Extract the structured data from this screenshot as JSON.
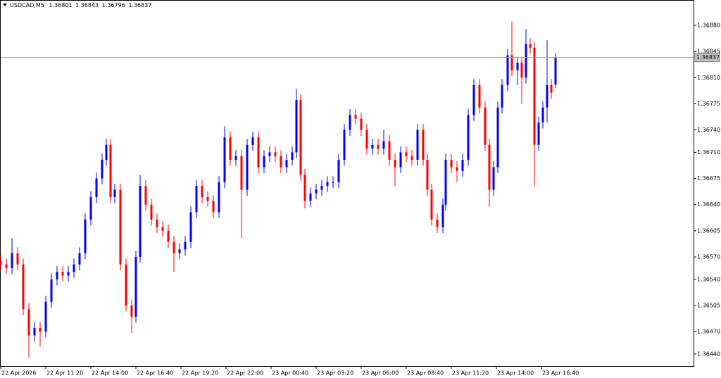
{
  "chart_data": {
    "type": "candlestick",
    "title": "USDCAD,M5",
    "up_color": "#0000ff",
    "down_color": "#ff0000",
    "grid": false,
    "xlim": [
      0,
      492
    ],
    "ylim": [
      1.36424,
      1.36912
    ],
    "xticks": [
      {
        "value": 0,
        "label": "22 Apr 2026"
      },
      {
        "value": 32,
        "label": "22 Apr 11:20"
      },
      {
        "value": 64,
        "label": "22 Apr 14:00"
      },
      {
        "value": 96,
        "label": "22 Apr 16:40"
      },
      {
        "value": 128,
        "label": "22 Apr 19:20"
      },
      {
        "value": 160,
        "label": "22 Apr 22:00"
      },
      {
        "value": 192,
        "label": "23 Apr 00:40"
      },
      {
        "value": 224,
        "label": "23 Apr 03:20"
      },
      {
        "value": 256,
        "label": "23 Apr 06:00"
      },
      {
        "value": 288,
        "label": "23 Apr 08:40"
      },
      {
        "value": 320,
        "label": "23 Apr 11:20"
      },
      {
        "value": 352,
        "label": "23 Apr 14:00"
      },
      {
        "value": 384,
        "label": "23 Apr 16:40"
      }
    ],
    "yticks": [
      {
        "value": 1.3688,
        "label": "1.36880"
      },
      1.36845,
      {
        "value": 1.3681,
        "label": "1.36810"
      },
      1.36775,
      {
        "value": 1.3674,
        "label": "1.36740"
      },
      {
        "value": 1.3671,
        "label": "1.36710"
      },
      1.36675,
      {
        "value": 1.3664,
        "label": "1.36640"
      },
      1.36605,
      {
        "value": 1.3657,
        "label": "1.36570"
      },
      {
        "value": 1.3654,
        "label": "1.36540"
      },
      1.36505,
      {
        "value": 1.3647,
        "label": "1.36470"
      },
      {
        "value": 1.3644,
        "label": "1.36440"
      }
    ],
    "x": [
      0,
      4,
      8,
      12,
      16,
      20,
      24,
      28,
      32,
      36,
      40,
      44,
      48,
      52,
      56,
      60,
      64,
      68,
      72,
      75,
      78,
      81,
      85,
      89,
      93,
      96,
      99,
      103,
      107,
      111,
      115,
      119,
      123,
      127,
      131,
      135,
      139,
      143,
      147,
      151,
      155,
      159,
      163,
      167,
      171,
      175,
      179,
      183,
      187,
      191,
      195,
      199,
      203,
      207,
      210,
      213,
      216,
      220,
      224,
      228,
      232,
      236,
      240,
      244,
      248,
      252,
      256,
      260,
      264,
      268,
      272,
      276,
      280,
      284,
      288,
      292,
      296,
      300,
      303,
      306,
      310,
      314,
      316,
      320,
      324,
      328,
      332,
      336,
      340,
      344,
      347,
      350,
      353,
      356,
      360,
      363,
      367,
      370,
      373,
      376,
      379,
      382,
      385,
      388,
      391,
      394
    ],
    "open": [
      1.36565,
      1.3656,
      1.36555,
      1.36575,
      1.3656,
      1.365,
      1.36465,
      1.36475,
      1.3647,
      1.3651,
      1.3654,
      1.3655,
      1.36545,
      1.3655,
      1.3656,
      1.36575,
      1.3662,
      1.3665,
      1.36675,
      1.367,
      1.3672,
      1.3665,
      1.3666,
      1.3656,
      1.36505,
      1.3649,
      1.3657,
      1.36665,
      1.3664,
      1.3662,
      1.3661,
      1.36605,
      1.3659,
      1.36575,
      1.3658,
      1.3659,
      1.3663,
      1.36665,
      1.3665,
      1.36645,
      1.3663,
      1.3667,
      1.3673,
      1.367,
      1.36705,
      1.3666,
      1.3672,
      1.3673,
      1.3669,
      1.36705,
      1.3671,
      1.36705,
      1.3669,
      1.367,
      1.3671,
      1.3678,
      1.3668,
      1.36645,
      1.36655,
      1.3666,
      1.36665,
      1.3667,
      1.3667,
      1.367,
      1.3674,
      1.3676,
      1.36755,
      1.3674,
      1.36715,
      1.3672,
      1.36715,
      1.36725,
      1.367,
      1.3669,
      1.3671,
      1.36705,
      1.367,
      1.3674,
      1.367,
      1.3666,
      1.3662,
      1.3661,
      1.3664,
      1.367,
      1.3669,
      1.36685,
      1.367,
      1.3676,
      1.368,
      1.3677,
      1.3672,
      1.3666,
      1.3669,
      1.3677,
      1.368,
      1.3684,
      1.3682,
      1.3683,
      1.3681,
      1.36855,
      1.3685,
      1.3672,
      1.3675,
      1.3677,
      1.368,
      1.36801
    ],
    "high": [
      1.36573,
      1.36568,
      1.36595,
      1.36583,
      1.36568,
      1.36508,
      1.36483,
      1.36483,
      1.36518,
      1.36548,
      1.36558,
      1.36558,
      1.36558,
      1.36568,
      1.36583,
      1.36628,
      1.36658,
      1.36683,
      1.36708,
      1.36728,
      1.36728,
      1.36668,
      1.36668,
      1.36568,
      1.36513,
      1.36578,
      1.3668,
      1.36673,
      1.36648,
      1.36628,
      1.36618,
      1.36613,
      1.36598,
      1.36588,
      1.36598,
      1.36638,
      1.36673,
      1.36673,
      1.36658,
      1.36653,
      1.36678,
      1.36745,
      1.36738,
      1.36713,
      1.36713,
      1.36728,
      1.36738,
      1.36738,
      1.36713,
      1.36718,
      1.36718,
      1.36713,
      1.36708,
      1.36718,
      1.36795,
      1.36788,
      1.36688,
      1.36663,
      1.36668,
      1.36673,
      1.36678,
      1.36678,
      1.36708,
      1.36748,
      1.36768,
      1.36768,
      1.36763,
      1.36748,
      1.36728,
      1.36728,
      1.3674,
      1.36733,
      1.36708,
      1.36718,
      1.36718,
      1.36713,
      1.36748,
      1.36748,
      1.36708,
      1.36668,
      1.36628,
      1.36648,
      1.36708,
      1.36708,
      1.36698,
      1.36708,
      1.36768,
      1.36808,
      1.36808,
      1.36778,
      1.36728,
      1.36698,
      1.36778,
      1.36808,
      1.36848,
      1.36885,
      1.36838,
      1.36838,
      1.36875,
      1.36863,
      1.36858,
      1.36758,
      1.36778,
      1.3686,
      1.36808,
      1.36843
    ],
    "low": [
      1.36552,
      1.36547,
      1.36547,
      1.36552,
      1.36492,
      1.36435,
      1.36457,
      1.3645,
      1.36462,
      1.36502,
      1.36532,
      1.36537,
      1.36537,
      1.36542,
      1.36552,
      1.36567,
      1.36612,
      1.36642,
      1.36667,
      1.36692,
      1.36642,
      1.36642,
      1.36552,
      1.36497,
      1.36468,
      1.36482,
      1.36562,
      1.36632,
      1.36612,
      1.36602,
      1.36597,
      1.36582,
      1.3655,
      1.36567,
      1.36572,
      1.36582,
      1.36622,
      1.36642,
      1.36637,
      1.36622,
      1.36622,
      1.36662,
      1.36692,
      1.36692,
      1.36595,
      1.36652,
      1.36712,
      1.36682,
      1.36682,
      1.36697,
      1.36697,
      1.36682,
      1.36682,
      1.36692,
      1.36702,
      1.36672,
      1.36635,
      1.36637,
      1.36647,
      1.36652,
      1.36657,
      1.36662,
      1.36662,
      1.36692,
      1.36732,
      1.36747,
      1.36732,
      1.36707,
      1.36707,
      1.36707,
      1.36707,
      1.36692,
      1.36665,
      1.36682,
      1.36697,
      1.36692,
      1.36692,
      1.36692,
      1.36652,
      1.36612,
      1.36602,
      1.36602,
      1.36632,
      1.36682,
      1.3667,
      1.36677,
      1.36692,
      1.36752,
      1.36762,
      1.36712,
      1.36637,
      1.36652,
      1.36682,
      1.36762,
      1.36792,
      1.36812,
      1.368,
      1.36775,
      1.36802,
      1.36842,
      1.36665,
      1.36712,
      1.36742,
      1.3675,
      1.36782,
      1.36796
    ],
    "close": [
      1.3656,
      1.36555,
      1.36575,
      1.3656,
      1.365,
      1.36465,
      1.36475,
      1.3647,
      1.3651,
      1.3654,
      1.3655,
      1.36545,
      1.3655,
      1.3656,
      1.36575,
      1.3662,
      1.3665,
      1.36675,
      1.367,
      1.3672,
      1.3665,
      1.3666,
      1.3656,
      1.36505,
      1.3649,
      1.3657,
      1.36665,
      1.3664,
      1.3662,
      1.3661,
      1.36605,
      1.3659,
      1.36575,
      1.3658,
      1.3659,
      1.3663,
      1.36665,
      1.3665,
      1.36645,
      1.3663,
      1.3667,
      1.3673,
      1.367,
      1.36705,
      1.3666,
      1.3672,
      1.3673,
      1.3669,
      1.36705,
      1.3671,
      1.36705,
      1.3669,
      1.367,
      1.3671,
      1.3678,
      1.3668,
      1.36645,
      1.36655,
      1.3666,
      1.36665,
      1.3667,
      1.3667,
      1.367,
      1.3674,
      1.3676,
      1.36755,
      1.3674,
      1.36715,
      1.3672,
      1.36715,
      1.36725,
      1.367,
      1.3669,
      1.3671,
      1.36705,
      1.367,
      1.3674,
      1.367,
      1.3666,
      1.3662,
      1.3661,
      1.3664,
      1.367,
      1.3669,
      1.36685,
      1.367,
      1.3676,
      1.368,
      1.3677,
      1.3672,
      1.3666,
      1.3669,
      1.3677,
      1.368,
      1.3684,
      1.3682,
      1.3683,
      1.3681,
      1.36855,
      1.3685,
      1.3672,
      1.3675,
      1.3677,
      1.368,
      1.3679,
      1.36837
    ]
  }
}
